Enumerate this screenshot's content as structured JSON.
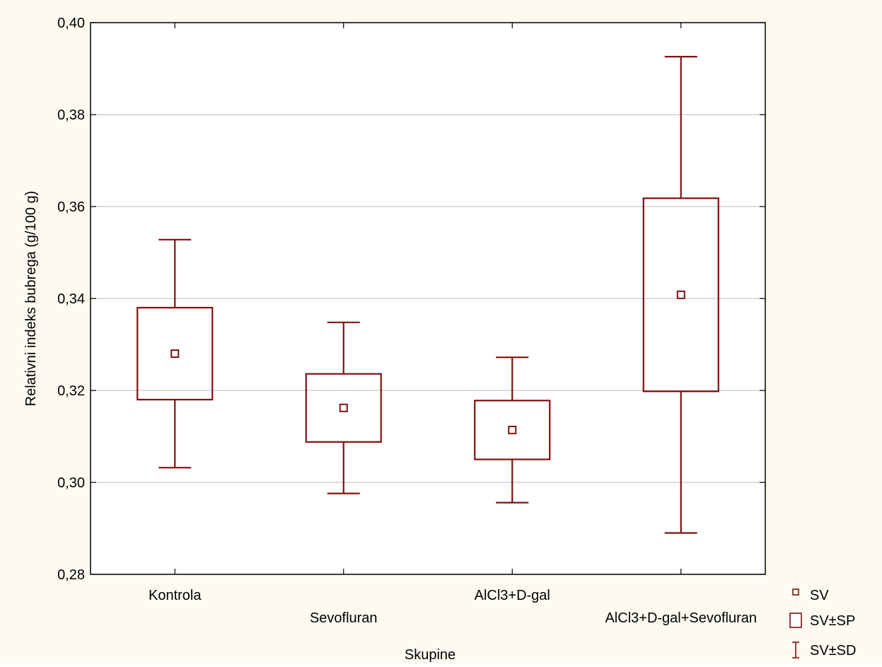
{
  "colors": {
    "background": "#fdfaf1",
    "plot_area": "#ffffff",
    "series": "#7f1010",
    "grid": "#c8c8c8",
    "axis": "#000000"
  },
  "chart_data": {
    "type": "box",
    "title": "",
    "xlabel": "Skupine",
    "ylabel": "Relativni indeks bubrega (g/100 g)",
    "ylim": [
      0.28,
      0.4
    ],
    "yticks": [
      "0,28",
      "0,30",
      "0,32",
      "0,34",
      "0,36",
      "0,38",
      "0,40"
    ],
    "grid": true,
    "categories": [
      "Kontrola",
      "Sevofluran",
      "AlCl3+D-gal",
      "AlCl3+D-gal+Sevofluran"
    ],
    "series": [
      {
        "name": "SV",
        "values": [
          0.328,
          0.3162,
          0.3114,
          0.3408
        ]
      },
      {
        "name": "SV±SP",
        "lower": [
          0.318,
          0.3088,
          0.305,
          0.3198
        ],
        "upper": [
          0.338,
          0.3236,
          0.3178,
          0.3618
        ]
      },
      {
        "name": "SV±SD",
        "lower": [
          0.3032,
          0.2976,
          0.2956,
          0.289
        ],
        "upper": [
          0.3528,
          0.3348,
          0.3272,
          0.3926
        ]
      }
    ],
    "legend": {
      "position": "bottom-right",
      "items": [
        {
          "label": "SV",
          "symbol": "small-square-icon"
        },
        {
          "label": "SV±SP",
          "symbol": "box-icon"
        },
        {
          "label": "SV±SD",
          "symbol": "whisker-icon"
        }
      ]
    }
  }
}
